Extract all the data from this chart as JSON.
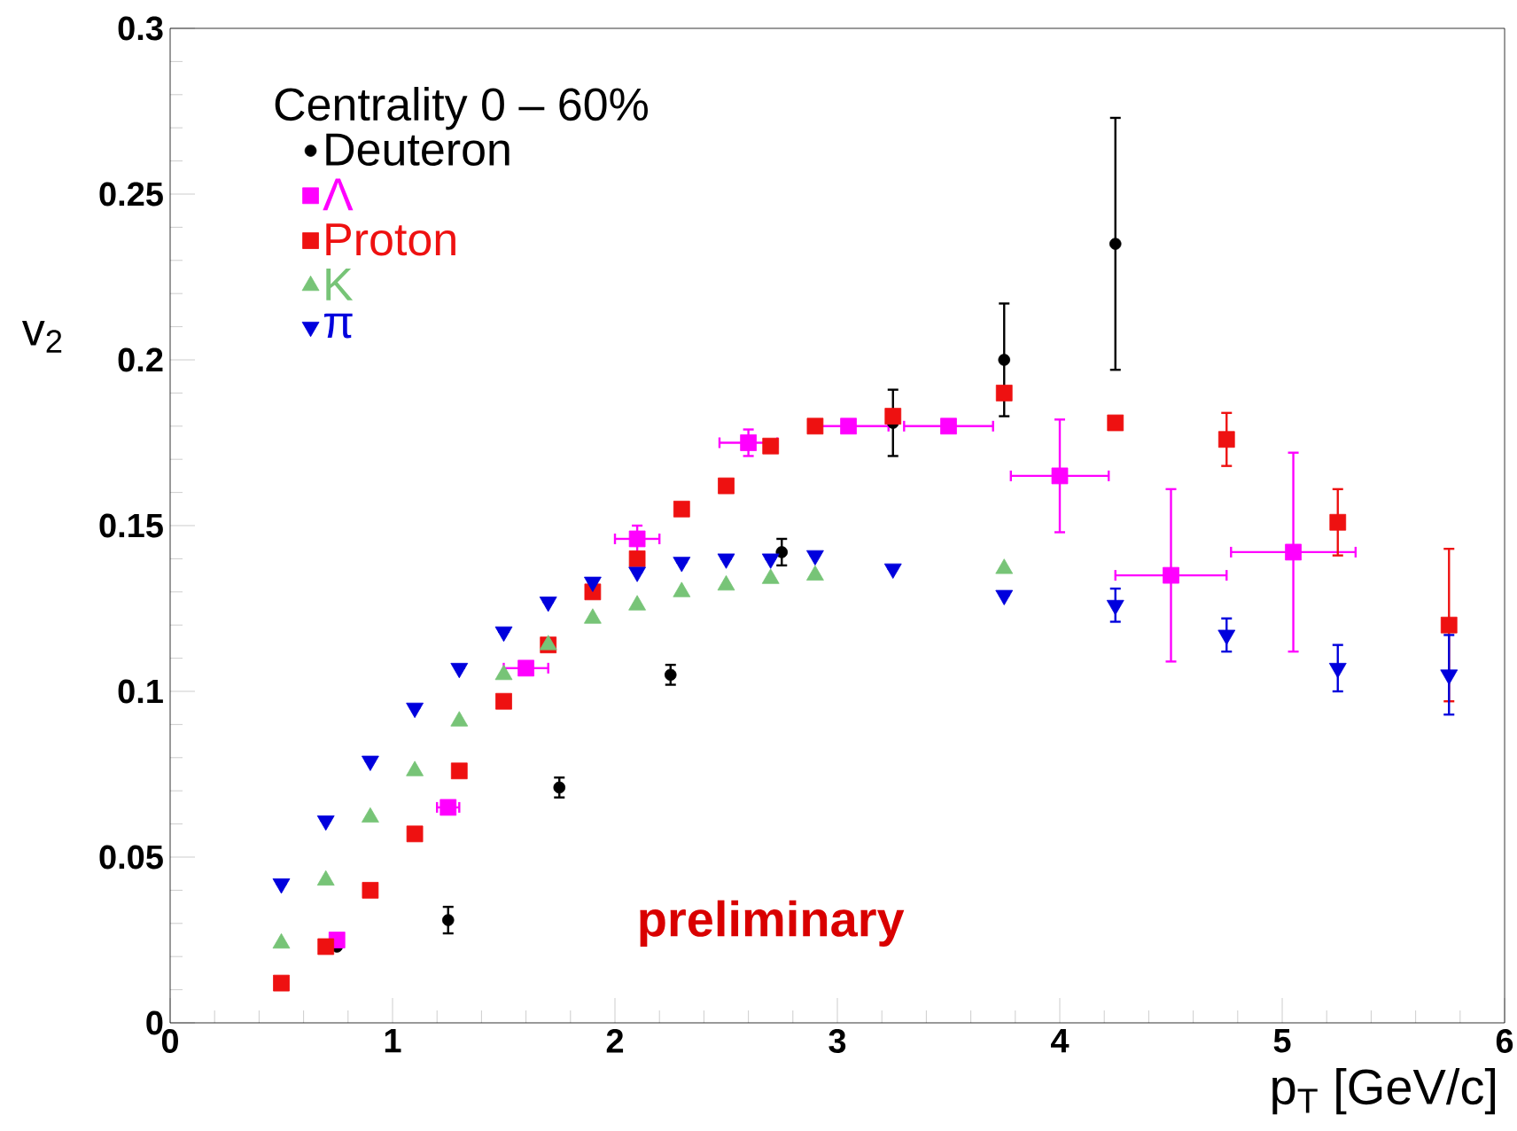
{
  "chart_data": {
    "type": "scatter",
    "xlabel": "p$_{T}$ [GeV/c]",
    "ylabel": "v$_{2}$",
    "legend_title": "Centrality 0 – 60%",
    "xlim": [
      0,
      6
    ],
    "ylim": [
      0,
      0.3
    ],
    "xticks": [
      0,
      1,
      2,
      3,
      4,
      5,
      6
    ],
    "yticks": [
      0,
      0.05,
      0.1,
      0.15,
      0.2,
      0.25,
      0.3
    ],
    "grid": false,
    "legend": "top left",
    "annotations": [
      "preliminary"
    ],
    "series": [
      {
        "name": "Deuteron",
        "color": "#000000",
        "marker": "circle",
        "x": [
          0.75,
          1.25,
          1.75,
          2.25,
          2.75,
          3.25,
          3.75,
          4.25
        ],
        "values": [
          0.023,
          0.031,
          0.071,
          0.105,
          0.142,
          0.181,
          0.2,
          0.235
        ],
        "errors": [
          null,
          0.004,
          0.003,
          0.003,
          0.004,
          0.01,
          0.017,
          0.038
        ]
      },
      {
        "name": "Λ",
        "color": "#ff00ff",
        "marker": "square",
        "x": [
          0.75,
          1.25,
          1.6,
          2.1,
          2.6,
          3.05,
          3.5,
          4.0,
          4.5,
          5.05
        ],
        "values": [
          0.025,
          0.065,
          0.107,
          0.146,
          0.175,
          0.18,
          0.18,
          0.165,
          0.135,
          0.142
        ],
        "errors": [
          null,
          null,
          null,
          0.004,
          0.004,
          null,
          null,
          0.017,
          0.026,
          0.03
        ],
        "xerrors": [
          null,
          0.05,
          0.1,
          0.1,
          0.13,
          0.18,
          0.2,
          0.22,
          0.25,
          0.28
        ]
      },
      {
        "name": "Proton",
        "color": "#ee1111",
        "marker": "square",
        "x": [
          0.5,
          0.7,
          0.9,
          1.1,
          1.3,
          1.5,
          1.7,
          1.9,
          2.1,
          2.3,
          2.5,
          2.7,
          2.9,
          3.25,
          3.75,
          4.25,
          4.75,
          5.25,
          5.75
        ],
        "values": [
          0.012,
          0.023,
          0.04,
          0.057,
          0.076,
          0.097,
          0.114,
          0.13,
          0.14,
          0.155,
          0.162,
          0.174,
          0.18,
          0.183,
          0.19,
          0.181,
          0.176,
          0.151,
          0.12
        ],
        "errors": [
          null,
          null,
          null,
          null,
          null,
          null,
          null,
          null,
          null,
          null,
          null,
          null,
          null,
          null,
          null,
          null,
          0.008,
          0.01,
          0.023
        ]
      },
      {
        "name": "K",
        "color": "#77c477",
        "marker": "triangle",
        "x": [
          0.5,
          0.7,
          0.9,
          1.1,
          1.3,
          1.5,
          1.7,
          1.9,
          2.1,
          2.3,
          2.5,
          2.7,
          2.9,
          3.75
        ],
        "values": [
          0.024,
          0.043,
          0.062,
          0.076,
          0.091,
          0.105,
          0.114,
          0.122,
          0.126,
          0.13,
          0.132,
          0.134,
          0.135,
          0.137
        ]
      },
      {
        "name": "π",
        "color": "#0000dd",
        "marker": "triangle-down",
        "x": [
          0.5,
          0.7,
          0.9,
          1.1,
          1.3,
          1.5,
          1.7,
          1.9,
          2.1,
          2.3,
          2.5,
          2.7,
          2.9,
          3.25,
          3.75,
          4.25,
          4.75,
          5.25,
          5.75
        ],
        "values": [
          0.042,
          0.061,
          0.079,
          0.095,
          0.107,
          0.118,
          0.127,
          0.133,
          0.136,
          0.139,
          0.14,
          0.14,
          0.141,
          0.137,
          0.129,
          0.126,
          0.117,
          0.107,
          0.105
        ],
        "errors": [
          null,
          null,
          null,
          null,
          null,
          null,
          null,
          null,
          null,
          null,
          null,
          null,
          null,
          null,
          null,
          0.005,
          0.005,
          0.007,
          0.012
        ]
      }
    ]
  }
}
